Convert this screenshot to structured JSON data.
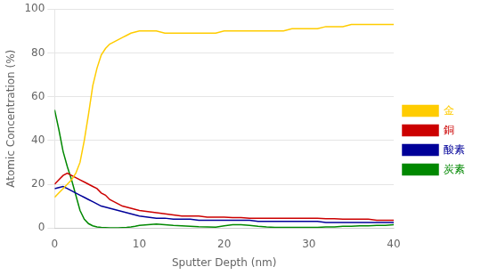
{
  "chart_data": {
    "type": "line",
    "xlabel": "Sputter Depth (nm)",
    "ylabel": "Atomic Concentration (%)",
    "x": [
      0,
      0.5,
      1.0,
      1.5,
      2.0,
      2.5,
      3.0,
      3.5,
      4.0,
      4.5,
      5.0,
      5.5,
      6.0,
      6.5,
      7.0,
      7.5,
      8.0,
      8.5,
      9.0,
      9.5,
      10,
      11,
      12,
      13,
      14,
      15,
      16,
      17,
      18,
      19,
      20,
      21,
      22,
      23,
      24,
      25,
      26,
      27,
      28,
      29,
      30,
      31,
      32,
      33,
      34,
      35,
      36,
      37,
      38,
      39,
      40
    ],
    "series": [
      {
        "name": "金",
        "color": "#ffcc00",
        "values": [
          14,
          16,
          18,
          20,
          22,
          25,
          30,
          40,
          52,
          65,
          73,
          79,
          82,
          84,
          85,
          86,
          87,
          88,
          89,
          89.5,
          90,
          90,
          90,
          89,
          89,
          89,
          89,
          89,
          89,
          89,
          90,
          90,
          90,
          90,
          90,
          90,
          90,
          90,
          91,
          91,
          91,
          91,
          92,
          92,
          92,
          93,
          93,
          93,
          93,
          93,
          93
        ]
      },
      {
        "name": "銅",
        "color": "#cc0000",
        "values": [
          20,
          22,
          24,
          25,
          24,
          23,
          22,
          21,
          20,
          19,
          18,
          16,
          15,
          13,
          12,
          11,
          10,
          9.5,
          9,
          8.5,
          8,
          7.5,
          7,
          6.5,
          6,
          5.5,
          5.5,
          5.5,
          5,
          5,
          5,
          4.8,
          4.8,
          4.5,
          4.5,
          4.5,
          4.5,
          4.5,
          4.5,
          4.5,
          4.5,
          4.5,
          4.2,
          4.2,
          4,
          4,
          4,
          4,
          3.5,
          3.5,
          3.5
        ]
      },
      {
        "name": "酸素",
        "color": "#000099",
        "values": [
          18,
          18.5,
          19,
          18,
          17,
          16,
          15,
          14,
          13,
          12,
          11,
          10,
          9.5,
          9,
          8.5,
          8,
          7.5,
          7,
          6.5,
          6,
          5.5,
          5,
          4.5,
          4.5,
          4,
          4,
          4,
          3.5,
          3.5,
          3.5,
          3.5,
          3.5,
          3.5,
          3.5,
          3,
          3,
          3,
          3,
          3,
          3,
          3,
          3,
          2.5,
          2.5,
          2.5,
          2.5,
          2.5,
          2.5,
          2.5,
          2.5,
          2.5
        ]
      },
      {
        "name": "炭素",
        "color": "#008800",
        "values": [
          54,
          45,
          35,
          28,
          22,
          15,
          8,
          4,
          2,
          1,
          0.5,
          0.3,
          0.2,
          0.1,
          0.1,
          0.1,
          0.2,
          0.3,
          0.5,
          0.8,
          1.2,
          1.5,
          1.8,
          1.5,
          1.2,
          1.0,
          0.8,
          0.6,
          0.5,
          0.4,
          1.0,
          1.5,
          1.5,
          1.2,
          0.8,
          0.5,
          0.3,
          0.3,
          0.3,
          0.3,
          0.3,
          0.3,
          0.5,
          0.5,
          0.8,
          0.8,
          1.0,
          1.0,
          1.2,
          1.2,
          1.5
        ]
      }
    ],
    "xlim": [
      0,
      40
    ],
    "ylim": [
      0,
      100
    ],
    "xticks": [
      0,
      10,
      20,
      30,
      40
    ],
    "yticks": [
      0,
      20,
      40,
      60,
      80,
      100
    ],
    "grid": true,
    "legend": "right"
  }
}
